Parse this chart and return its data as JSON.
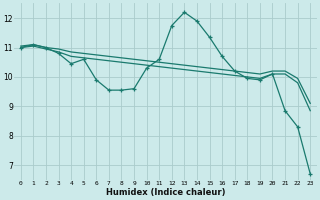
{
  "xlabel": "Humidex (Indice chaleur)",
  "background_color": "#cceaea",
  "grid_color": "#aacccc",
  "line_color": "#1a7a6e",
  "xlim": [
    -0.5,
    23.5
  ],
  "ylim": [
    6.5,
    12.5
  ],
  "xticks": [
    0,
    1,
    2,
    3,
    4,
    5,
    6,
    7,
    8,
    9,
    10,
    11,
    12,
    13,
    14,
    15,
    16,
    17,
    18,
    19,
    20,
    21,
    22,
    23
  ],
  "yticks": [
    7,
    8,
    9,
    10,
    11,
    12
  ],
  "series": [
    {
      "x": [
        0,
        1,
        2,
        3,
        4,
        5,
        6,
        7,
        8,
        9,
        10,
        11,
        12,
        13,
        14,
        15,
        16,
        17,
        18,
        19,
        20,
        21,
        22,
        23
      ],
      "y": [
        11.05,
        11.1,
        11.0,
        10.95,
        10.85,
        10.8,
        10.75,
        10.7,
        10.65,
        10.6,
        10.55,
        10.5,
        10.45,
        10.4,
        10.35,
        10.3,
        10.25,
        10.2,
        10.15,
        10.1,
        10.2,
        10.2,
        9.95,
        9.1
      ],
      "markers": false
    },
    {
      "x": [
        0,
        1,
        2,
        3,
        4,
        5,
        6,
        7,
        8,
        9,
        10,
        11,
        12,
        13,
        14,
        15,
        16,
        17,
        18,
        19,
        20,
        21,
        22,
        23
      ],
      "y": [
        11.0,
        11.05,
        10.95,
        10.85,
        10.7,
        10.65,
        10.6,
        10.55,
        10.5,
        10.45,
        10.4,
        10.35,
        10.3,
        10.25,
        10.2,
        10.15,
        10.1,
        10.05,
        10.0,
        9.95,
        10.1,
        10.1,
        9.8,
        8.85
      ],
      "markers": false
    },
    {
      "x": [
        0,
        1,
        2,
        3,
        4,
        5,
        6,
        7,
        8,
        9,
        10,
        11,
        12,
        13,
        14,
        15,
        16,
        17,
        18,
        19,
        20,
        21,
        22,
        23
      ],
      "y": [
        11.0,
        11.1,
        11.0,
        10.8,
        10.45,
        10.6,
        9.9,
        9.55,
        9.55,
        9.6,
        10.3,
        10.6,
        11.75,
        12.2,
        11.9,
        11.35,
        10.7,
        10.2,
        9.95,
        9.9,
        10.1,
        8.85,
        8.3,
        6.7
      ],
      "markers": true
    }
  ]
}
